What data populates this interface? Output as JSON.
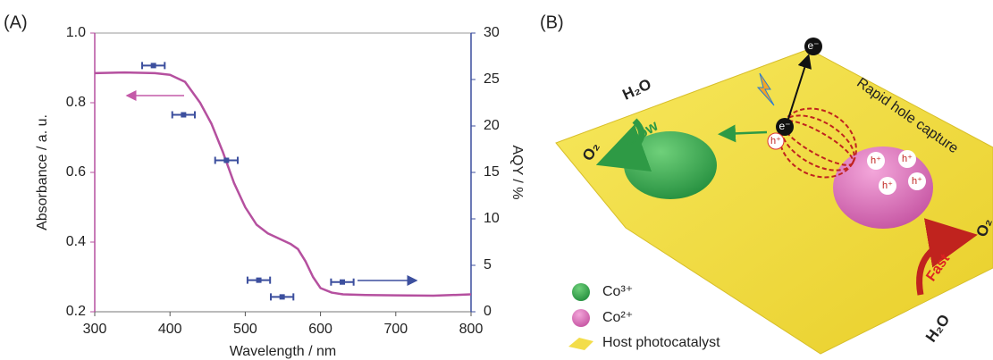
{
  "chart_data": {
    "type": "line",
    "panel_label": "(A)",
    "xlabel": "Wavelength / nm",
    "ylabel": "Absorbance / a. u.",
    "y2label": "AQY / %",
    "xlim": [
      300,
      800
    ],
    "xticks": [
      300,
      400,
      500,
      600,
      700,
      800
    ],
    "ylim": [
      0.2,
      1
    ],
    "yticks": [
      0.2,
      0.4,
      0.6,
      0.8,
      {
        "value": 1,
        "label": "1.0"
      }
    ],
    "y2lim": [
      0,
      30
    ],
    "y2ticks": [
      0,
      5,
      10,
      15,
      20,
      25,
      30
    ],
    "series": [
      {
        "color": "#b5509f",
        "x": [
          300,
          340,
          380,
          400,
          420,
          440,
          455,
          470,
          485,
          500,
          515,
          530,
          545,
          560,
          570,
          580,
          590,
          600,
          615,
          630,
          660,
          700,
          750,
          800
        ],
        "values": [
          0.885,
          0.887,
          0.885,
          0.88,
          0.86,
          0.8,
          0.74,
          0.66,
          0.57,
          0.5,
          0.45,
          0.425,
          0.41,
          0.395,
          0.38,
          0.345,
          0.3,
          0.268,
          0.255,
          0.25,
          0.248,
          0.247,
          0.246,
          0.25
        ]
      },
      {
        "type": "scatter",
        "axis": "y2",
        "color": "#3c4f9e",
        "x": [
          378,
          418,
          475,
          518,
          549,
          629
        ],
        "values": [
          26.5,
          21.2,
          16.3,
          3.4,
          1.6,
          3.2
        ],
        "xerr": [
          15,
          15,
          15,
          15,
          15,
          15
        ]
      }
    ]
  },
  "diagram": {
    "panel_label": "(B)",
    "electron": "e⁻",
    "hole": "h⁺",
    "water": "H₂O",
    "oxygen": "O₂",
    "slow": "Slow",
    "fast": "Fast",
    "capture": "Rapid hole capture",
    "legend": [
      "Co³⁺",
      "Co²⁺",
      "Host photocatalyst"
    ]
  }
}
